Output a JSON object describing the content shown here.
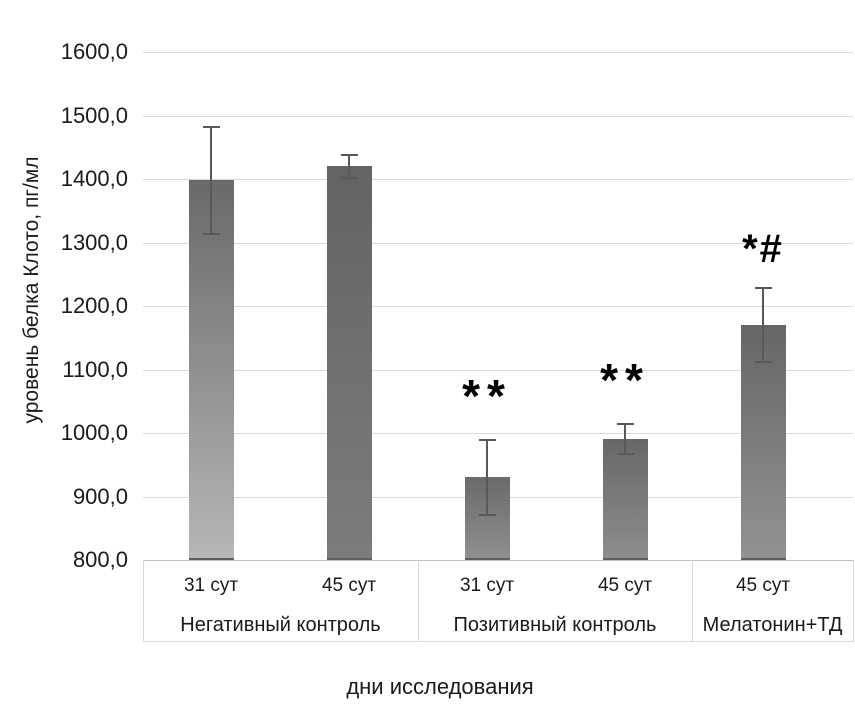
{
  "chart_data": {
    "type": "bar",
    "title": "",
    "xlabel": "дни исследования",
    "ylabel": "уровень белка Клото, пг/мл",
    "ylim": [
      800,
      1600
    ],
    "ytick_step": 100,
    "grid": true,
    "legend": false,
    "yticks": [
      {
        "value": 800,
        "label": "800,0"
      },
      {
        "value": 900,
        "label": "900,0"
      },
      {
        "value": 1000,
        "label": "1000,0"
      },
      {
        "value": 1100,
        "label": "1100,0"
      },
      {
        "value": 1200,
        "label": "1200,0"
      },
      {
        "value": 1300,
        "label": "1300,0"
      },
      {
        "value": 1400,
        "label": "1400,0"
      },
      {
        "value": 1500,
        "label": "1500,0"
      },
      {
        "value": 1600,
        "label": "1600,0"
      }
    ],
    "groups": [
      {
        "label": "Негативный контроль",
        "bars": [
          {
            "category": "31 сут",
            "value": 1398,
            "error": 86,
            "annotation": "",
            "fill_top": "#696969",
            "fill_bottom": "#b6b6b6"
          },
          {
            "category": "45 сут",
            "value": 1420,
            "error": 20,
            "annotation": "",
            "fill_top": "#636363",
            "fill_bottom": "#7c7c7c"
          }
        ]
      },
      {
        "label": "Позитивный контроль",
        "bars": [
          {
            "category": "31 сут",
            "value": 930,
            "error": 60,
            "annotation": "**",
            "fill_top": "#6a6a6a",
            "fill_bottom": "#8f8f8f"
          },
          {
            "category": "45 сут",
            "value": 990,
            "error": 25,
            "annotation": "**",
            "fill_top": "#676767",
            "fill_bottom": "#8d8d8d"
          }
        ]
      },
      {
        "label": "Мелатонин+ТД",
        "bars": [
          {
            "category": "45 сут",
            "value": 1170,
            "error": 60,
            "annotation": "*#",
            "fill_top": "#666666",
            "fill_bottom": "#929292"
          }
        ]
      }
    ],
    "colors": {
      "gridline": "#d9d9d9",
      "axis_line": "#bfbfbf",
      "error_bar": "#595959",
      "bar_bottom_edge": "#5e5e5e",
      "text": "#1a1a1a",
      "background": "#ffffff"
    }
  }
}
